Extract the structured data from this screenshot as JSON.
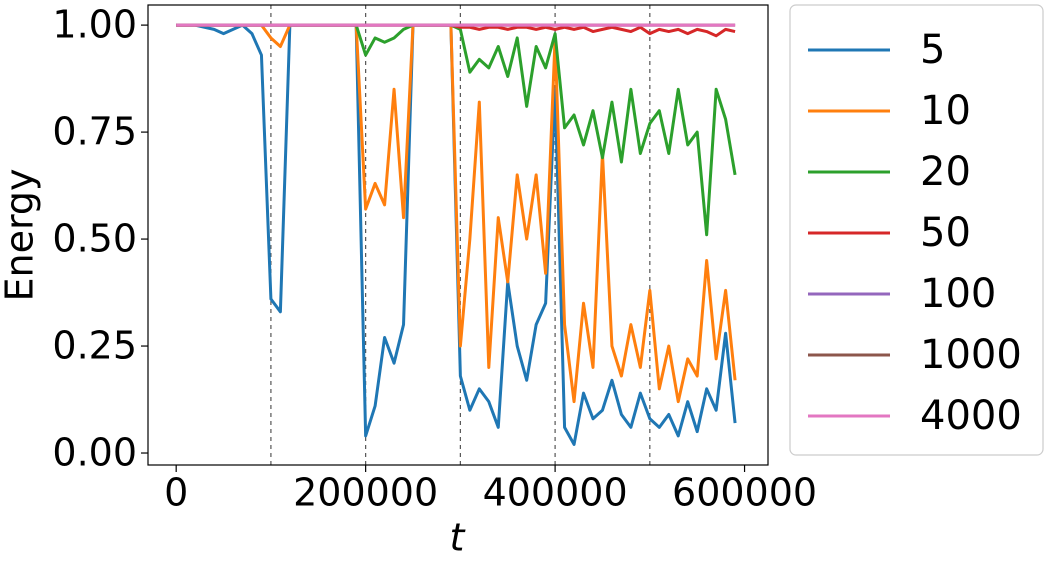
{
  "chart_data": {
    "type": "line",
    "xlabel": "t",
    "ylabel": "Energy",
    "x": [
      0,
      10000,
      20000,
      30000,
      40000,
      50000,
      60000,
      70000,
      80000,
      90000,
      100000,
      110000,
      120000,
      130000,
      140000,
      150000,
      160000,
      170000,
      180000,
      190000,
      200000,
      210000,
      220000,
      230000,
      240000,
      250000,
      260000,
      270000,
      280000,
      290000,
      300000,
      310000,
      320000,
      330000,
      340000,
      350000,
      360000,
      370000,
      380000,
      390000,
      400000,
      410000,
      420000,
      430000,
      440000,
      450000,
      460000,
      470000,
      480000,
      490000,
      500000,
      510000,
      520000,
      530000,
      540000,
      550000,
      560000,
      570000,
      580000,
      590000
    ],
    "series": [
      {
        "name": "5",
        "color": "#1f77b4",
        "values": [
          1,
          1,
          1,
          0.995,
          0.99,
          0.98,
          0.99,
          1,
          0.98,
          0.93,
          0.36,
          0.33,
          1,
          1,
          1,
          1,
          1,
          1,
          1,
          1,
          0.04,
          0.11,
          0.27,
          0.21,
          0.3,
          1,
          1,
          1,
          1,
          1,
          0.18,
          0.1,
          0.15,
          0.12,
          0.06,
          0.4,
          0.25,
          0.17,
          0.3,
          0.35,
          0.85,
          0.06,
          0.02,
          0.14,
          0.08,
          0.1,
          0.17,
          0.09,
          0.06,
          0.14,
          0.08,
          0.06,
          0.09,
          0.04,
          0.12,
          0.05,
          0.15,
          0.1,
          0.28,
          0.07
        ]
      },
      {
        "name": "10",
        "color": "#ff7f0e",
        "values": [
          1,
          1,
          1,
          1,
          1,
          1,
          1,
          1,
          1,
          1,
          0.97,
          0.95,
          1,
          1,
          1,
          1,
          1,
          1,
          1,
          1,
          0.57,
          0.63,
          0.58,
          0.85,
          0.55,
          1,
          1,
          1,
          1,
          1,
          0.25,
          0.5,
          0.82,
          0.2,
          0.55,
          0.4,
          0.65,
          0.5,
          0.65,
          0.42,
          0.97,
          0.3,
          0.12,
          0.35,
          0.2,
          0.7,
          0.25,
          0.18,
          0.3,
          0.2,
          0.38,
          0.15,
          0.25,
          0.12,
          0.22,
          0.18,
          0.45,
          0.22,
          0.38,
          0.17
        ]
      },
      {
        "name": "20",
        "color": "#2ca02c",
        "values": [
          1,
          1,
          1,
          1,
          1,
          1,
          1,
          1,
          1,
          1,
          1,
          1,
          1,
          1,
          1,
          1,
          1,
          1,
          1,
          1,
          0.93,
          0.97,
          0.96,
          0.97,
          0.99,
          1,
          1,
          1,
          1,
          1,
          0.99,
          0.89,
          0.92,
          0.9,
          0.95,
          0.88,
          0.97,
          0.81,
          0.95,
          0.9,
          0.98,
          0.76,
          0.79,
          0.72,
          0.8,
          0.69,
          0.82,
          0.68,
          0.85,
          0.7,
          0.77,
          0.8,
          0.7,
          0.85,
          0.72,
          0.75,
          0.51,
          0.85,
          0.78,
          0.65
        ]
      },
      {
        "name": "50",
        "color": "#d62728",
        "values": [
          1,
          1,
          1,
          1,
          1,
          1,
          1,
          1,
          1,
          1,
          1,
          1,
          1,
          1,
          1,
          1,
          1,
          1,
          1,
          1,
          1,
          1,
          1,
          1,
          1,
          1,
          1,
          1,
          1,
          1,
          0.995,
          0.995,
          0.99,
          0.995,
          0.995,
          0.99,
          0.995,
          0.995,
          0.99,
          0.995,
          0.99,
          0.995,
          0.99,
          0.995,
          0.985,
          0.99,
          0.995,
          0.99,
          0.985,
          0.995,
          0.98,
          0.99,
          0.985,
          0.99,
          0.98,
          0.99,
          0.985,
          0.975,
          0.99,
          0.985
        ]
      },
      {
        "name": "100",
        "color": "#9467bd",
        "values": [
          1,
          1,
          1,
          1,
          1,
          1,
          1,
          1,
          1,
          1,
          1,
          1,
          1,
          1,
          1,
          1,
          1,
          1,
          1,
          1,
          1,
          1,
          1,
          1,
          1,
          1,
          1,
          1,
          1,
          1,
          1,
          1,
          1,
          1,
          1,
          1,
          1,
          1,
          1,
          1,
          1,
          1,
          1,
          1,
          1,
          1,
          1,
          1,
          1,
          1,
          1,
          1,
          1,
          1,
          1,
          1,
          1,
          1,
          1,
          1
        ]
      },
      {
        "name": "1000",
        "color": "#8c564b",
        "values": [
          1,
          1,
          1,
          1,
          1,
          1,
          1,
          1,
          1,
          1,
          1,
          1,
          1,
          1,
          1,
          1,
          1,
          1,
          1,
          1,
          1,
          1,
          1,
          1,
          1,
          1,
          1,
          1,
          1,
          1,
          1,
          1,
          1,
          1,
          1,
          1,
          1,
          1,
          1,
          1,
          1,
          1,
          1,
          1,
          1,
          1,
          1,
          1,
          1,
          1,
          1,
          1,
          1,
          1,
          1,
          1,
          1,
          1,
          1,
          1
        ]
      },
      {
        "name": "4000",
        "color": "#e377c2",
        "values": [
          1,
          1,
          1,
          1,
          1,
          1,
          1,
          1,
          1,
          1,
          1,
          1,
          1,
          1,
          1,
          1,
          1,
          1,
          1,
          1,
          1,
          1,
          1,
          1,
          1,
          1,
          1,
          1,
          1,
          1,
          1,
          1,
          1,
          1,
          1,
          1,
          1,
          1,
          1,
          1,
          1,
          1,
          1,
          1,
          1,
          1,
          1,
          1,
          1,
          1,
          1,
          1,
          1,
          1,
          1,
          1,
          1,
          1,
          1,
          1
        ]
      }
    ],
    "vlines": [
      100000,
      200000,
      300000,
      400000,
      500000
    ],
    "xlim": [
      -29750,
      624750
    ],
    "xticks": [
      0,
      200000,
      400000,
      600000
    ],
    "ylim": [
      -0.028,
      1.047
    ],
    "yticks": [
      {
        "value": 0,
        "label": "0.00"
      },
      {
        "value": 0.25,
        "label": "0.25"
      },
      {
        "value": 0.5,
        "label": "0.50"
      },
      {
        "value": 0.75,
        "label": "0.75"
      },
      {
        "value": 1,
        "label": "1.00"
      }
    ],
    "legend": "outside-right"
  }
}
